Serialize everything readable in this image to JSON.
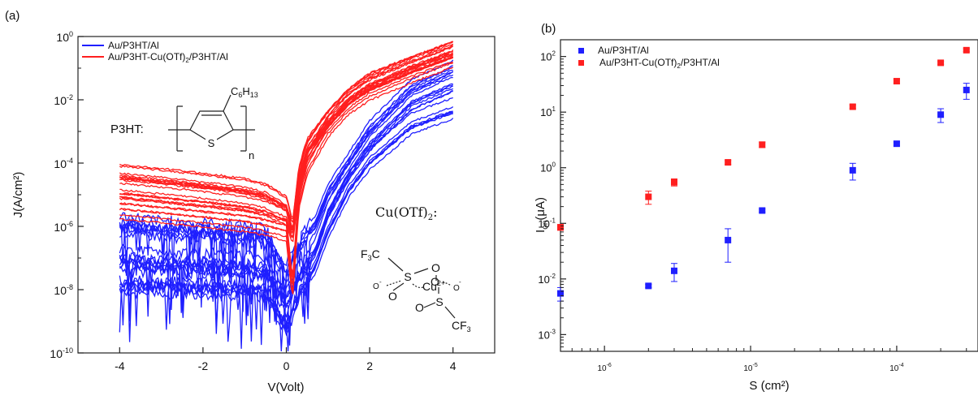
{
  "panel_a": {
    "label": "(a)",
    "legend": [
      {
        "label": "Au/P3HT/Al",
        "color": "#1f1fff"
      },
      {
        "label": "Au/P3HT-Cu(OTf)",
        "sub": "2",
        "tail": "/P3HT/Al",
        "color": "#ff1f1f"
      }
    ],
    "inset_p3ht": {
      "label": "P3HT:",
      "substituent": "C",
      "sub1": "6",
      "h": "H",
      "sub2": "13",
      "atom_s": "S",
      "repeat": "n"
    },
    "inset_cu": {
      "label": "Cu(OTf)",
      "label_sub": "2",
      "colon": ":",
      "f3c": "F",
      "f3c_sub": "3",
      "f3c_c": "C",
      "s": "S",
      "o": "O",
      "cu": "Cu",
      "cu_sup": "2+",
      "minus": "-",
      "cf3": "CF",
      "cf3_sub": "3"
    }
  },
  "panel_b": {
    "label": "(b)",
    "legend": [
      {
        "label": "Au/P3HT/Al",
        "color": "#1f1fff"
      },
      {
        "label": "Au/P3HT-Cu(OTf)",
        "sub": "2",
        "tail": "/P3HT/Al",
        "color": "#ff1f1f"
      }
    ]
  },
  "colors": {
    "blue": "#1f1fff",
    "red": "#ff1f1f"
  },
  "chart_data": [
    {
      "type": "line",
      "xlabel": "V(Volt)",
      "ylabel": "J(A/cm²)",
      "x_ticks": [
        "-4",
        "-2",
        "0",
        "2",
        "4"
      ],
      "y_ticks": [
        {
          "base": "10",
          "exp": "0"
        },
        {
          "base": "10",
          "exp": "-2"
        },
        {
          "base": "10",
          "exp": "-4"
        },
        {
          "base": "10",
          "exp": "-6"
        },
        {
          "base": "10",
          "exp": "-8"
        },
        {
          "base": "10",
          "exp": "-10"
        }
      ],
      "xlim": [
        -5,
        5
      ],
      "ylim": [
        1e-10,
        1
      ],
      "yscale": "log",
      "series": [
        {
          "name": "Au/P3HT/Al",
          "color": "#1f1fff",
          "x": [
            -4,
            -3,
            -2,
            -1,
            -0.5,
            0,
            0.3,
            0.7,
            1,
            1.5,
            2,
            3,
            4
          ],
          "curves": [
            {
              "y": [
                1e-06,
                7e-07,
                6e-07,
                5e-07,
                4e-07,
                3e-08,
                2e-07,
                1e-06,
                1e-05,
                0.0001,
                0.001,
                0.02,
                0.08
              ]
            },
            {
              "y": [
                1e-07,
                8e-08,
                7e-08,
                6e-08,
                5e-08,
                5e-09,
                3e-08,
                2e-07,
                3e-06,
                5e-05,
                0.0004,
                0.008,
                0.03
              ]
            },
            {
              "y": [
                2e-08,
                1.8e-08,
                1.6e-08,
                1.5e-08,
                1.2e-08,
                1e-09,
                1e-08,
                8e-08,
                1e-06,
                2e-05,
                0.00015,
                0.002,
                0.006
              ]
            }
          ]
        },
        {
          "name": "Au/P3HT-Cu(OTf)2/P3HT/Al",
          "color": "#ff1f1f",
          "x": [
            -4,
            -3,
            -2,
            -1,
            -0.5,
            0,
            0.15,
            0.3,
            0.5,
            1,
            1.5,
            2,
            3,
            4
          ],
          "curves": [
            {
              "y": [
                6e-05,
                4.5e-05,
                3.2e-05,
                2.2e-05,
                1.5e-05,
                6e-06,
                1e-06,
                5e-05,
                0.0004,
                0.003,
                0.015,
                0.04,
                0.15,
                0.45
              ]
            },
            {
              "y": [
                1.5e-05,
                1.1e-05,
                8e-06,
                5.5e-06,
                4e-06,
                2e-06,
                5e-07,
                2e-05,
                0.0002,
                0.002,
                0.01,
                0.03,
                0.1,
                0.3
              ]
            },
            {
              "y": [
                4e-06,
                3e-06,
                2.2e-06,
                1.6e-06,
                1.2e-06,
                8e-07,
                1e-08,
                8e-06,
                0.0001,
                0.0015,
                0.008,
                0.022,
                0.08,
                0.25
              ]
            }
          ]
        }
      ]
    },
    {
      "type": "scatter",
      "xlabel": "S (cm²)",
      "ylabel": "I",
      "ylabel_sub": "on",
      "ylabel_tail": "(μA)",
      "x_ticks": [
        {
          "base": "10",
          "exp": "-6"
        },
        {
          "base": "10",
          "exp": "-5"
        },
        {
          "base": "10",
          "exp": "-4"
        }
      ],
      "y_ticks": [
        {
          "base": "10",
          "exp": "2"
        },
        {
          "base": "10",
          "exp": "1"
        },
        {
          "base": "10",
          "exp": "0"
        },
        {
          "base": "10",
          "exp": "-1"
        },
        {
          "base": "10",
          "exp": "-2"
        },
        {
          "base": "10",
          "exp": "-3"
        }
      ],
      "xscale": "log",
      "yscale": "log",
      "xlim": [
        5e-07,
        0.00036
      ],
      "ylim": [
        0.0005,
        200
      ],
      "series": [
        {
          "name": "Au/P3HT/Al",
          "color": "#1f1fff",
          "x": [
            5e-07,
            2e-06,
            3e-06,
            7e-06,
            1.2e-05,
            5e-05,
            0.0001,
            0.0002,
            0.0003
          ],
          "y": [
            0.0055,
            0.0075,
            0.014,
            0.05,
            0.17,
            0.9,
            2.7,
            9,
            25
          ],
          "err": [
            0.0015,
            0.0005,
            0.005,
            0.03,
            0.01,
            0.3,
            0.2,
            2.5,
            8
          ]
        },
        {
          "name": "Au/P3HT-Cu(OTf)2/P3HT/Al",
          "color": "#ff1f1f",
          "x": [
            5e-07,
            2e-06,
            3e-06,
            7e-06,
            1.2e-05,
            5e-05,
            0.0001,
            0.0002,
            0.0003
          ],
          "y": [
            0.085,
            0.3,
            0.55,
            1.25,
            2.6,
            12.5,
            36,
            77,
            130
          ],
          "err": [
            0.01,
            0.08,
            0.08,
            0.1,
            0.3,
            1,
            3,
            5,
            8
          ]
        }
      ]
    }
  ]
}
